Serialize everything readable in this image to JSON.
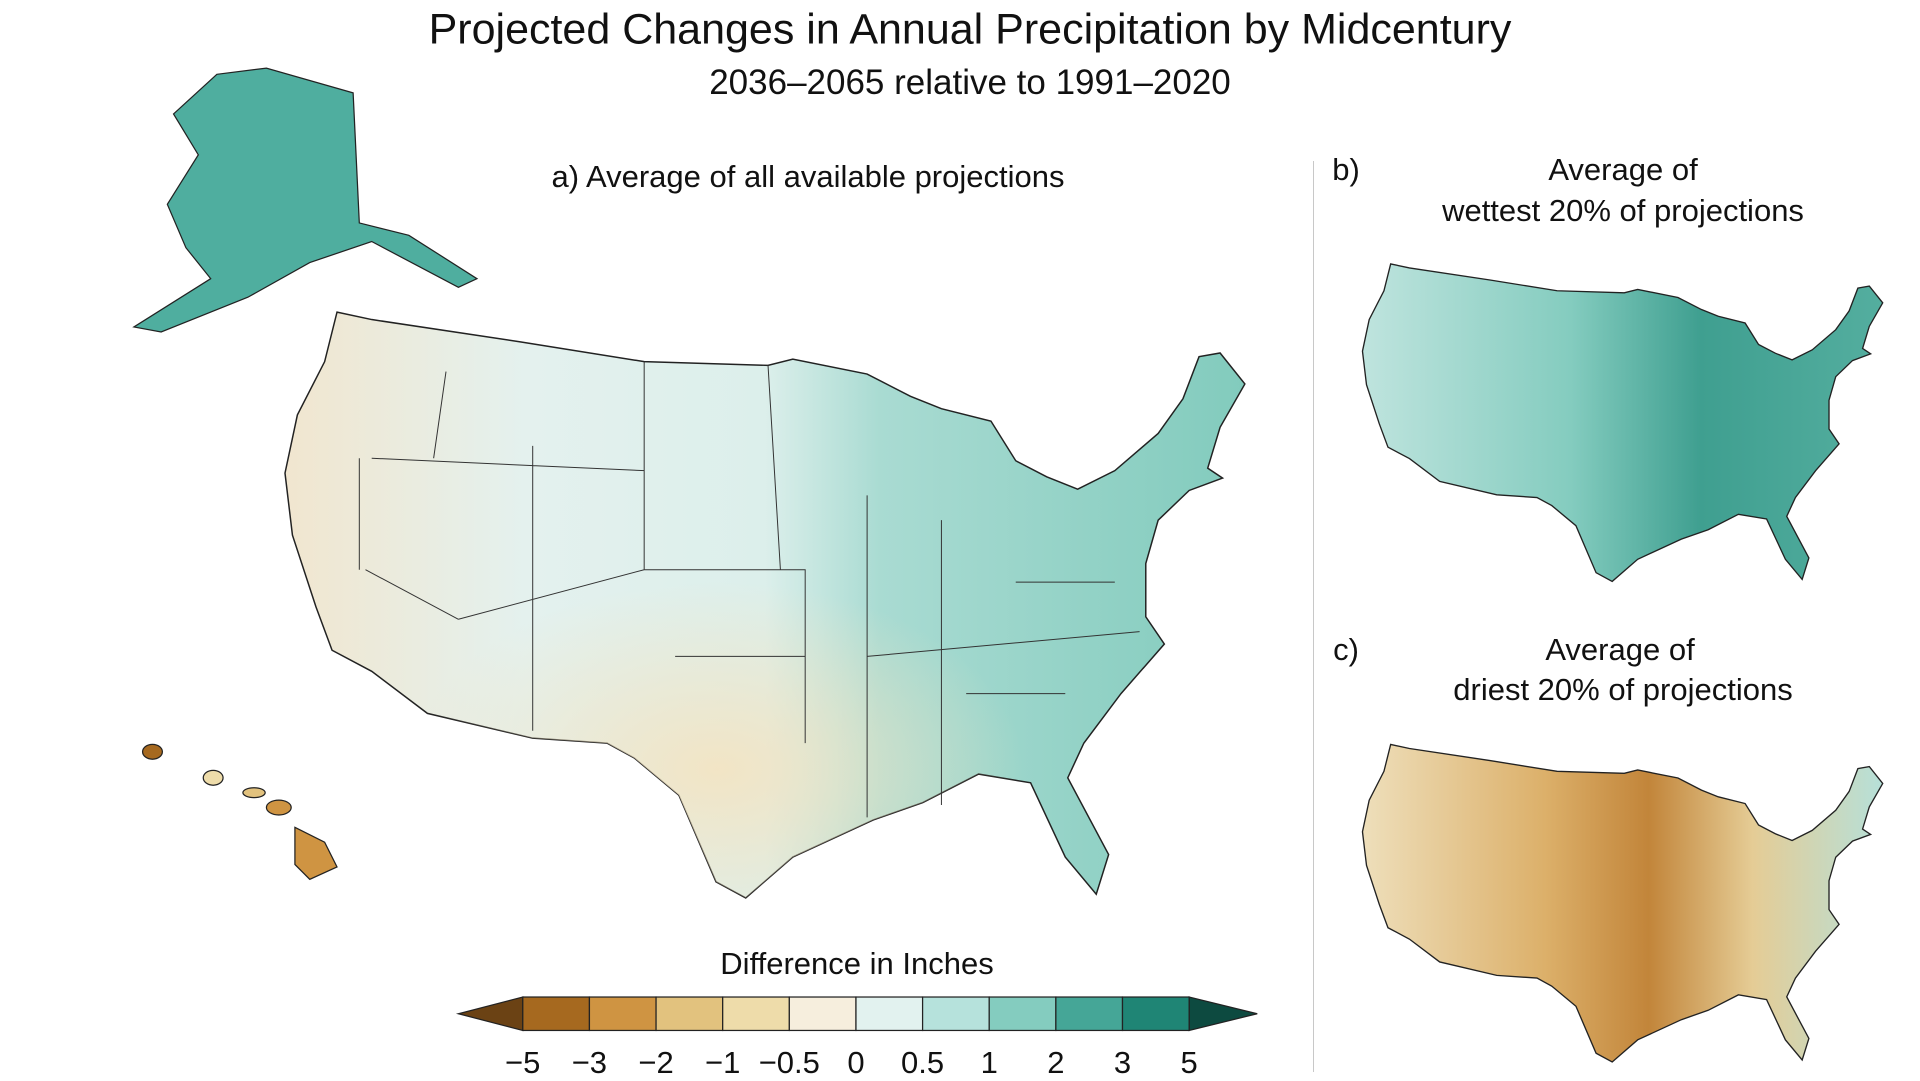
{
  "title": "Projected Changes in Annual Precipitation by Midcentury",
  "subtitle": "2036–2065 relative to 1991–2020",
  "panels": {
    "a": {
      "label": "a) Average of all available projections"
    },
    "b": {
      "letter": "b)",
      "line1": "Average of",
      "line2": "wettest 20% of projections"
    },
    "c": {
      "letter": "c)",
      "line1": "Average of",
      "line2": "driest 20% of projections"
    }
  },
  "colorbar": {
    "title": "Difference in Inches",
    "ticks": [
      "−5",
      "−3",
      "−2",
      "−1",
      "−0.5",
      "0",
      "0.5",
      "1",
      "2",
      "3",
      "5"
    ],
    "under_color": "#6b4214",
    "over_color": "#0d4a40",
    "colors": [
      "#a6691f",
      "#cf9442",
      "#e2c27e",
      "#eedcaa",
      "#f6eedd",
      "#e2f2ef",
      "#b6e2dc",
      "#84ccbf",
      "#45a697",
      "#1f8575"
    ]
  }
}
